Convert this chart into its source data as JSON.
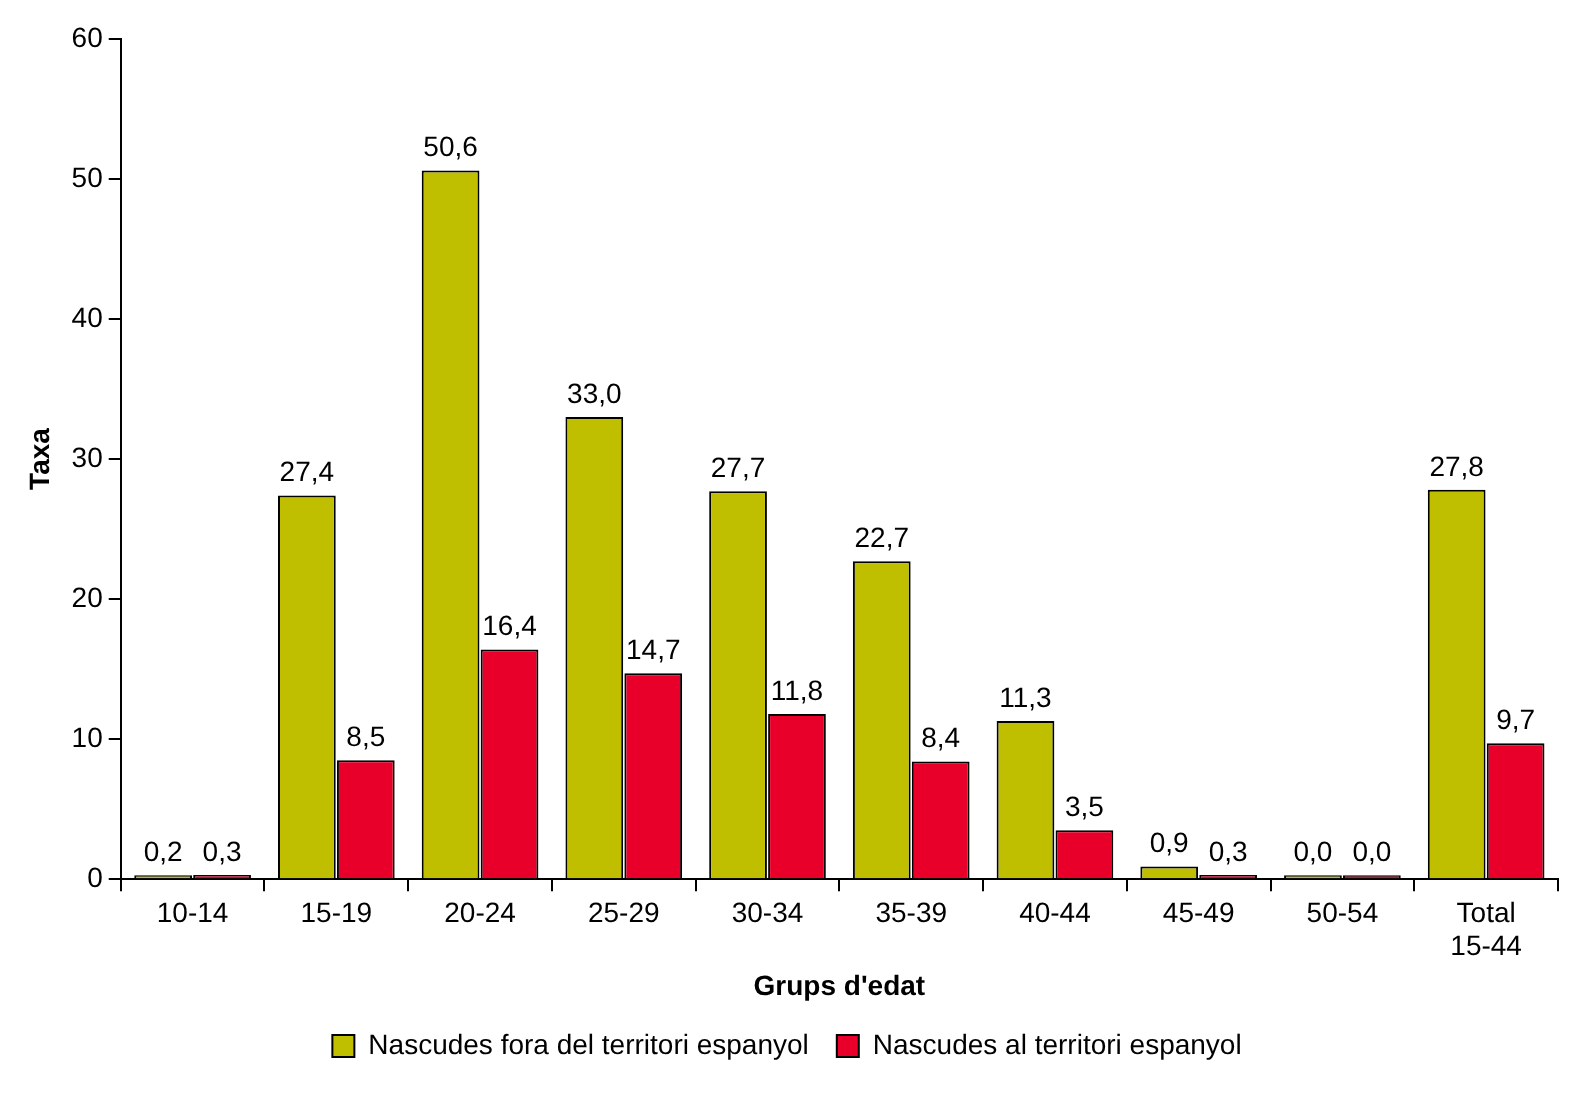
{
  "chart_data": {
    "type": "bar",
    "xlabel": "Grups d'edat",
    "ylabel": "Taxa",
    "categories": [
      "10-14",
      "15-19",
      "20-24",
      "25-29",
      "30-34",
      "35-39",
      "40-44",
      "45-49",
      "50-54",
      "Total 15-44"
    ],
    "series": [
      {
        "name": "Nascudes fora del territori espanyol",
        "color": "#bfbf00",
        "values": [
          0.2,
          27.4,
          50.6,
          33.0,
          27.7,
          22.7,
          11.3,
          0.9,
          0.0,
          27.8
        ],
        "value_labels": [
          "0,2",
          "27,4",
          "50,6",
          "33,0",
          "27,7",
          "22,7",
          "11,3",
          "0,9",
          "0,0",
          "27,8"
        ]
      },
      {
        "name": "Nascudes al territori espanyol",
        "color": "#e8002a",
        "values": [
          0.3,
          8.5,
          16.4,
          14.7,
          11.8,
          8.4,
          3.5,
          0.3,
          0.0,
          9.7
        ],
        "value_labels": [
          "0,3",
          "8,5",
          "16,4",
          "14,7",
          "11,8",
          "8,4",
          "3,5",
          "0,3",
          "0,0",
          "9,7"
        ]
      }
    ],
    "ylim": [
      0,
      60
    ],
    "yticks": [
      0,
      10,
      20,
      30,
      40,
      50,
      60
    ],
    "grid": false,
    "legend": "bottom"
  }
}
